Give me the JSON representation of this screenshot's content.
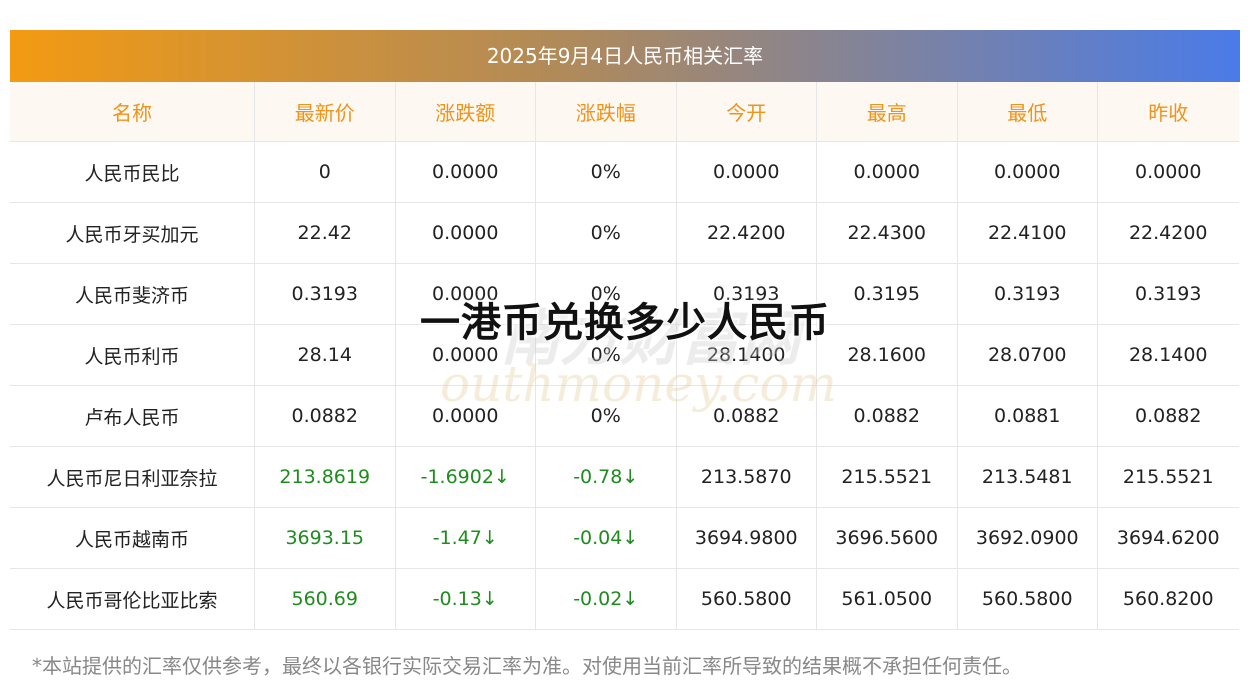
{
  "title": "2025年9月4日人民币相关汇率",
  "table": {
    "headers": [
      "名称",
      "最新价",
      "涨跌额",
      "涨跌幅",
      "今开",
      "最高",
      "最低",
      "昨收"
    ],
    "rows": [
      {
        "cells": [
          "人民币民比",
          "0",
          "0.0000",
          "0%",
          "0.0000",
          "0.0000",
          "0.0000",
          "0.0000"
        ]
      },
      {
        "cells": [
          "人民币牙买加元",
          "22.42",
          "0.0000",
          "0%",
          "22.4200",
          "22.4300",
          "22.4100",
          "22.4200"
        ]
      },
      {
        "cells": [
          "人民币斐济币",
          "0.3193",
          "0.0000",
          "0%",
          "0.3193",
          "0.3195",
          "0.3193",
          "0.3193"
        ]
      },
      {
        "cells": [
          "人民币利币",
          "28.14",
          "0.0000",
          "0%",
          "28.1400",
          "28.1600",
          "28.0700",
          "28.1400"
        ]
      },
      {
        "cells": [
          "卢布人民币",
          "0.0882",
          "0.0000",
          "0%",
          "0.0882",
          "0.0882",
          "0.0881",
          "0.0882"
        ]
      },
      {
        "cells": [
          "人民币尼日利亚奈拉",
          "213.8619",
          "-1.6902↓",
          "-0.78↓",
          "213.5870",
          "215.5521",
          "213.5481",
          "215.5521"
        ],
        "color": "#1e8c1e"
      },
      {
        "cells": [
          "人民币越南币",
          "3693.15",
          "-1.47↓",
          "-0.04↓",
          "3694.9800",
          "3696.5600",
          "3692.0900",
          "3694.6200"
        ],
        "color": "#1e8c1e"
      },
      {
        "cells": [
          "人民币哥伦比亚比索",
          "560.69",
          "-0.13↓",
          "-0.02↓",
          "560.5800",
          "561.0500",
          "560.5800",
          "560.8200"
        ],
        "color": "#1e8c1e"
      }
    ]
  },
  "note": "*本站提供的汇率仅供参考，最终以各银行实际交易汇率为准。对使用当前汇率所导致的结果概不承担任何责任。",
  "overlay": "一港币兑换多少人民币",
  "watermark": {
    "name": "南方财富网",
    "site": "outhmoney.com"
  }
}
